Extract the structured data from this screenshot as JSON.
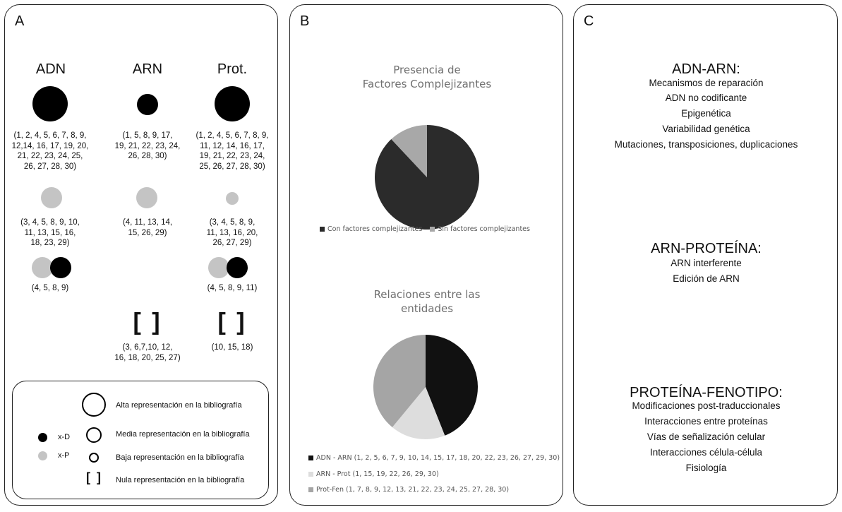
{
  "panel_a": {
    "letter": "A",
    "columns": [
      "ADN",
      "ARN",
      "Prot."
    ],
    "high_lists": [
      "(1, 2, 4, 5, 6, 7, 8, 9,\n12,14, 16, 17, 19, 20,\n21, 22, 23, 24, 25,\n26, 27, 28, 30)",
      "(1, 5, 8, 9, 17,\n19, 21, 22, 23, 24,\n26, 28, 30)",
      "(1, 2, 4, 5, 6, 7, 8, 9,\n11, 12, 14, 16, 17,\n19, 21, 22, 23, 24,\n25, 26, 27, 28, 30)"
    ],
    "mid_lists": [
      "(3, 4, 5, 8, 9, 10,\n11, 13, 15, 16,\n18, 23, 29)",
      "(4, 11, 13, 14,\n15, 26, 29)",
      "(3, 4, 5, 8, 9,\n11, 13, 16, 20,\n26, 27, 29)"
    ],
    "both_lists": [
      "(4, 5, 8, 9)",
      "(4, 5, 8, 9, 11)"
    ],
    "null_symbol": "[ ]",
    "null_lists": [
      "(3, 6,7,10, 12,\n16, 18, 20, 25, 27)",
      "(10, 15, 18)"
    ],
    "legend": {
      "xd": "x-D",
      "xp": "x-P",
      "alta": "Alta representación en la bibliografía",
      "media": "Media representación en la bibliografía",
      "baja": "Baja representación en la bibliografía",
      "nula_symbol": "[ ]",
      "nula": "Nula representación en la bibliografía"
    }
  },
  "panel_b": {
    "letter": "B"
  },
  "panel_c": {
    "letter": "C",
    "sections": [
      {
        "title": "ADN-ARN:",
        "items": [
          "Mecanismos de reparación",
          "ADN no codificante",
          "Epigenética",
          "Variabilidad genética",
          "Mutaciones, transposiciones, duplicaciones"
        ]
      },
      {
        "title": "ARN-PROTEÍNA:",
        "items": [
          "ARN interferente",
          "Edición de ARN"
        ]
      },
      {
        "title": "PROTEÍNA-FENOTIPO:",
        "items": [
          "Modificaciones post-traduccionales",
          "Interacciones entre proteínas",
          "Vías de señalización celular",
          "Interacciones célula-célula",
          "Fisiología"
        ]
      }
    ]
  },
  "chart_data": [
    {
      "type": "pie",
      "title": "Presencia de\nFactores Complejizantes",
      "categories": [
        "Con factores complejizantes",
        "Sin factores complejizantes"
      ],
      "values": [
        88,
        12
      ],
      "colors": [
        "#2b2b2b",
        "#a8a8a8"
      ],
      "legend": "bottom"
    },
    {
      "type": "pie",
      "title": "Relaciones entre las\nentidades",
      "categories": [
        "ADN - ARN (1, 2, 5, 6, 7, 9, 10, 14, 15, 17, 18, 20, 22, 23, 26, 27, 29, 30)",
        "ARN - Prot (1, 15, 19, 22, 26, 29, 30)",
        "Prot-Fen (1, 7, 8, 9, 12, 13, 21, 22, 23, 24, 25, 27, 28, 30)"
      ],
      "values": [
        44,
        17,
        39
      ],
      "colors": [
        "#111111",
        "#dddddd",
        "#a5a5a5"
      ],
      "legend": "bottom"
    }
  ]
}
